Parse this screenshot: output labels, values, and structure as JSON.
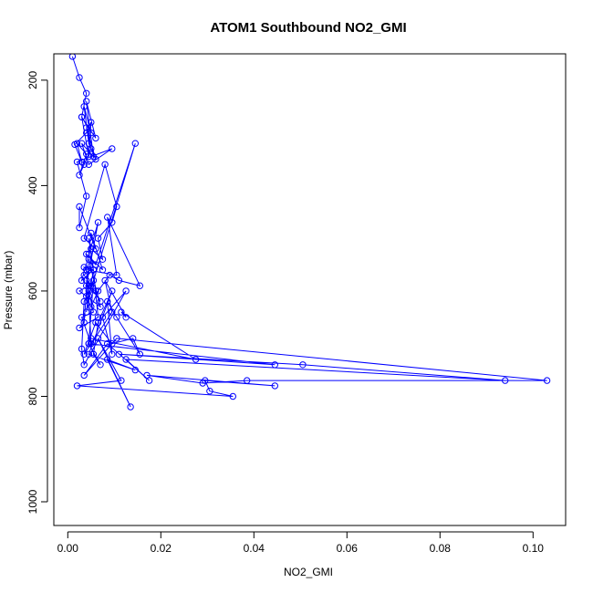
{
  "chart_data": {
    "type": "line",
    "title": "ATOM1 Southbound NO2_GMI",
    "xlabel": "NO2_GMI",
    "ylabel": "Pressure (mbar)",
    "xlim": [
      -0.003,
      0.107
    ],
    "ylim": [
      1045,
      150
    ],
    "y_reversed": true,
    "xticks": [
      0.0,
      0.02,
      0.04,
      0.06,
      0.08,
      0.1
    ],
    "xtick_labels": [
      "0.00",
      "0.02",
      "0.04",
      "0.06",
      "0.08",
      "0.10"
    ],
    "yticks": [
      200,
      400,
      600,
      800,
      1000
    ],
    "ytick_labels": [
      "200",
      "400",
      "600",
      "800",
      "1000"
    ],
    "grid": false,
    "marker": "open-circle",
    "color": "#0000ff",
    "series": [
      {
        "x": [
          0.001,
          0.0025,
          0.004,
          0.003,
          0.005,
          0.0035,
          0.0045,
          0.006,
          0.004,
          0.005,
          0.0035,
          0.0025,
          0.004,
          0.002,
          0.003,
          0.0015,
          0.004,
          0.005,
          0.0045,
          0.003,
          0.006,
          0.004,
          0.0055,
          0.003,
          0.0045,
          0.0095,
          0.002,
          0.004,
          0.0025,
          0.0025,
          0.006,
          0.0035,
          0.008,
          0.0105,
          0.0095,
          0.0065,
          0.0075,
          0.005,
          0.0045,
          0.0055,
          0.003,
          0.0065,
          0.004,
          0.006,
          0.007,
          0.004,
          0.0055,
          0.003,
          0.005,
          0.0045,
          0.0145,
          0.006,
          0.004,
          0.0075,
          0.005,
          0.0045,
          0.0055,
          0.0035,
          0.004,
          0.0105,
          0.0085,
          0.0155,
          0.011,
          0.009,
          0.0065,
          0.005,
          0.004,
          0.0045,
          0.0025,
          0.007,
          0.0045,
          0.0035,
          0.0025,
          0.0065,
          0.0055,
          0.004,
          0.0045,
          0.0035,
          0.003,
          0.0035,
          0.0125,
          0.0075,
          0.0095,
          0.0085,
          0.0105,
          0.0155,
          0.014,
          0.0095,
          0.006,
          0.0035,
          0.0095,
          0.008,
          0.0125,
          0.0115,
          0.0275,
          0.005,
          0.0045,
          0.0445,
          0.011,
          0.0505,
          0.094,
          0.0125,
          0.0175,
          0.0085,
          0.0035,
          0.0105,
          0.103,
          0.0385,
          0.029,
          0.017,
          0.0445,
          0.0295,
          0.0305,
          0.0355,
          0.002,
          0.0115,
          0.0065,
          0.0135,
          0.0085,
          0.0145,
          0.0045,
          0.0095,
          0.0065,
          0.0055,
          0.007,
          0.0045,
          0.0055,
          0.005,
          0.0035,
          0.0045
        ],
        "y": [
          155,
          195,
          225,
          270,
          300,
          250,
          320,
          350,
          290,
          330,
          360,
          380,
          340,
          320,
          355,
          322,
          300,
          280,
          345,
          270,
          310,
          240,
          345,
          320,
          360,
          330,
          355,
          420,
          480,
          440,
          520,
          500,
          360,
          440,
          470,
          500,
          540,
          520,
          500,
          560,
          580,
          470,
          590,
          600,
          620,
          580,
          640,
          650,
          700,
          610,
          320,
          550,
          530,
          560,
          490,
          530,
          560,
          555,
          560,
          570,
          460,
          590,
          580,
          570,
          600,
          630,
          610,
          590,
          600,
          630,
          540,
          660,
          670,
          650,
          560,
          640,
          600,
          620,
          710,
          740,
          600,
          650,
          720,
          620,
          650,
          720,
          690,
          700,
          660,
          720,
          640,
          580,
          650,
          640,
          730,
          690,
          700,
          740,
          720,
          740,
          770,
          730,
          770,
          700,
          760,
          690,
          770,
          770,
          775,
          760,
          780,
          770,
          790,
          800,
          780,
          770,
          690,
          820,
          730,
          750,
          720,
          600,
          660,
          720,
          740,
          700,
          580,
          590,
          570,
          560
        ]
      }
    ]
  }
}
